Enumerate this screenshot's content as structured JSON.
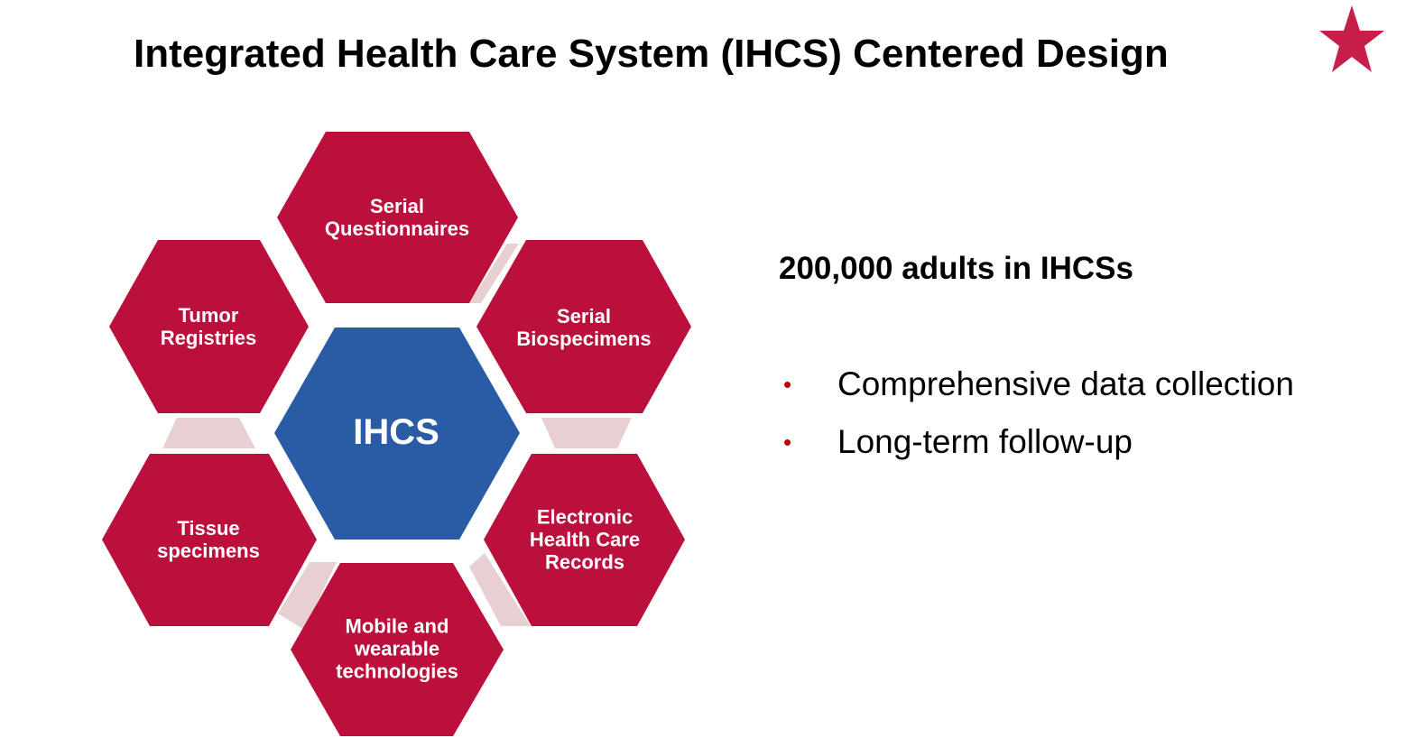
{
  "title": "Integrated Health Care System (IHCS) Centered Design",
  "colors": {
    "outer_hex": "#bb0f3c",
    "center_hex": "#2a5ba5",
    "connector": "#e8cfd2",
    "star": "#c81e4a",
    "bullet": "#c00000"
  },
  "diagram": {
    "center": {
      "label": "IHCS"
    },
    "nodes": [
      {
        "label": "Serial\nQuestionnaires"
      },
      {
        "label": "Serial\nBiospecimens"
      },
      {
        "label": "Electronic\nHealth Care\nRecords"
      },
      {
        "label": "Mobile and\nwearable\ntechnologies"
      },
      {
        "label": "Tissue\nspecimens"
      },
      {
        "label": "Tumor\nRegistries"
      }
    ]
  },
  "info": {
    "heading": "200,000 adults in IHCSs",
    "bullets": [
      {
        "marker": "•",
        "text": "Comprehensive data collection"
      },
      {
        "marker": "•",
        "text": "Long-term follow-up"
      }
    ]
  },
  "icons": {
    "star": "star-icon"
  }
}
